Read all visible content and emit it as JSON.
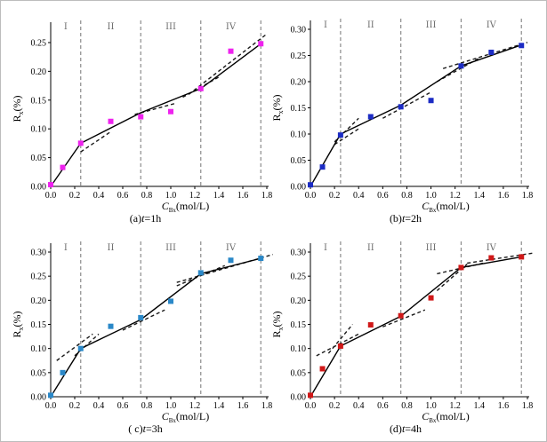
{
  "chart_data": [
    {
      "type": "scatter",
      "caption": "(a) t=1h",
      "caption_prefix": "(a)",
      "caption_var": "t",
      "caption_rest": "=1h",
      "xlabel": "C_Bx(mol/L)",
      "ylabel": "R_x(%)",
      "xlim": [
        0,
        1.8
      ],
      "ylim": [
        0,
        0.27
      ],
      "xticks": [
        "0.0",
        "0.2",
        "0.4",
        "0.6",
        "0.8",
        "1.0",
        "1.2",
        "1.4",
        "1.6",
        "1.8"
      ],
      "yticks": [
        "0.00",
        "0.05",
        "0.10",
        "0.15",
        "0.20",
        "0.25"
      ],
      "ytick_values": [
        0,
        0.05,
        0.1,
        0.15,
        0.2,
        0.25
      ],
      "region_labels": [
        "I",
        "II",
        "III",
        "IV"
      ],
      "region_boundaries": [
        0.25,
        0.75,
        1.25,
        1.75
      ],
      "marker_color": "#ee22ee",
      "points": [
        [
          0,
          0.003
        ],
        [
          0.1,
          0.033
        ],
        [
          0.25,
          0.075
        ],
        [
          0.5,
          0.113
        ],
        [
          0.75,
          0.121
        ],
        [
          1.0,
          0.13
        ],
        [
          1.25,
          0.17
        ],
        [
          1.5,
          0.235
        ],
        [
          1.75,
          0.248
        ]
      ],
      "solid_line": [
        [
          0,
          0
        ],
        [
          0.25,
          0.075
        ],
        [
          0.75,
          0.128
        ],
        [
          1.25,
          0.17
        ],
        [
          1.75,
          0.248
        ]
      ],
      "dashed_lines": [
        [
          [
            0.25,
            0.06
          ],
          [
            0.5,
            0.095
          ]
        ],
        [
          [
            0.7,
            0.125
          ],
          [
            1.05,
            0.145
          ]
        ],
        [
          [
            1.1,
            0.155
          ],
          [
            1.4,
            0.19
          ]
        ],
        [
          [
            1.15,
            0.16
          ],
          [
            1.8,
            0.265
          ]
        ]
      ]
    },
    {
      "type": "scatter",
      "caption": "(b) t=2h",
      "caption_prefix": "(b)",
      "caption_var": "t",
      "caption_rest": "=2h",
      "xlabel": "C_Bx(mol/L)",
      "ylabel": "R_x(%)",
      "xlim": [
        0,
        1.8
      ],
      "ylim": [
        0,
        0.3
      ],
      "xticks": [
        "0.0",
        "0.2",
        "0.4",
        "0.6",
        "0.8",
        "1.0",
        "1.2",
        "1.4",
        "1.6",
        "1.8"
      ],
      "yticks": [
        "0.00",
        "0.05",
        "0.10",
        "0.15",
        "0.20",
        "0.25",
        "0.30"
      ],
      "ytick_values": [
        0,
        0.05,
        0.1,
        0.15,
        0.2,
        0.25,
        0.3
      ],
      "region_labels": [
        "I",
        "II",
        "III",
        "IV"
      ],
      "region_boundaries": [
        0.25,
        0.75,
        1.25,
        1.75
      ],
      "marker_color": "#1c2cc4",
      "points": [
        [
          0,
          0.003
        ],
        [
          0.1,
          0.037
        ],
        [
          0.25,
          0.098
        ],
        [
          0.5,
          0.133
        ],
        [
          0.75,
          0.152
        ],
        [
          1.0,
          0.164
        ],
        [
          1.25,
          0.23
        ],
        [
          1.5,
          0.256
        ],
        [
          1.75,
          0.269
        ]
      ],
      "solid_line": [
        [
          0,
          0
        ],
        [
          0.25,
          0.1
        ],
        [
          0.75,
          0.155
        ],
        [
          1.25,
          0.23
        ],
        [
          1.75,
          0.27
        ]
      ],
      "dashed_lines": [
        [
          [
            0.2,
            0.085
          ],
          [
            0.4,
            0.13
          ]
        ],
        [
          [
            0.2,
            0.08
          ],
          [
            0.4,
            0.11
          ]
        ],
        [
          [
            0.6,
            0.13
          ],
          [
            1.0,
            0.18
          ]
        ],
        [
          [
            1.05,
            0.2
          ],
          [
            1.4,
            0.245
          ]
        ],
        [
          [
            1.1,
            0.225
          ],
          [
            1.8,
            0.275
          ]
        ]
      ]
    },
    {
      "type": "scatter",
      "caption": "( c) t=3h",
      "caption_prefix": "( c)",
      "caption_var": "t",
      "caption_rest": "=3h",
      "xlabel": "C_Bx(mol/L)",
      "ylabel": "R_x(%)",
      "xlim": [
        0,
        1.8
      ],
      "ylim": [
        0,
        0.3
      ],
      "xticks": [
        "0.0",
        "0.2",
        "0.4",
        "0.6",
        "0.8",
        "1.0",
        "1.2",
        "1.4",
        "1.6",
        "1.8"
      ],
      "yticks": [
        "0.00",
        "0.05",
        "0.10",
        "0.15",
        "0.20",
        "0.25",
        "0.30"
      ],
      "ytick_values": [
        0,
        0.05,
        0.1,
        0.15,
        0.2,
        0.25,
        0.3
      ],
      "region_labels": [
        "I",
        "II",
        "III",
        "IV"
      ],
      "region_boundaries": [
        0.25,
        0.75,
        1.25,
        1.75
      ],
      "marker_color": "#2a88c8",
      "points": [
        [
          0,
          0.003
        ],
        [
          0.1,
          0.05
        ],
        [
          0.25,
          0.1
        ],
        [
          0.5,
          0.146
        ],
        [
          0.75,
          0.164
        ],
        [
          1.0,
          0.198
        ],
        [
          1.25,
          0.257
        ],
        [
          1.5,
          0.283
        ],
        [
          1.75,
          0.287
        ]
      ],
      "solid_line": [
        [
          0,
          0
        ],
        [
          0.25,
          0.1
        ],
        [
          0.75,
          0.16
        ],
        [
          1.25,
          0.255
        ],
        [
          1.75,
          0.287
        ]
      ],
      "dashed_lines": [
        [
          [
            0.05,
            0.075
          ],
          [
            0.35,
            0.13
          ]
        ],
        [
          [
            0.2,
            0.085
          ],
          [
            0.4,
            0.13
          ]
        ],
        [
          [
            0.6,
            0.138
          ],
          [
            0.95,
            0.18
          ]
        ],
        [
          [
            1.05,
            0.23
          ],
          [
            1.45,
            0.272
          ]
        ],
        [
          [
            1.05,
            0.237
          ],
          [
            1.85,
            0.295
          ]
        ]
      ]
    },
    {
      "type": "scatter",
      "caption": "(d) t=4h",
      "caption_prefix": "(d)",
      "caption_var": "t",
      "caption_rest": "=4h",
      "xlabel": "C_Bx(mol/L)",
      "ylabel": "R_x(%)",
      "xlim": [
        0,
        1.8
      ],
      "ylim": [
        0,
        0.3
      ],
      "xticks": [
        "0.0",
        "0.2",
        "0.4",
        "0.6",
        "0.8",
        "1.0",
        "1.2",
        "1.4",
        "1.6",
        "1.8"
      ],
      "yticks": [
        "0.00",
        "0.05",
        "0.10",
        "0.15",
        "0.20",
        "0.25",
        "0.30"
      ],
      "ytick_values": [
        0,
        0.05,
        0.1,
        0.15,
        0.2,
        0.25,
        0.3
      ],
      "region_labels": [
        "I",
        "II",
        "III",
        "IV"
      ],
      "region_boundaries": [
        0.25,
        0.75,
        1.25,
        1.75
      ],
      "marker_color": "#d01818",
      "points": [
        [
          0,
          0.003
        ],
        [
          0.1,
          0.058
        ],
        [
          0.25,
          0.105
        ],
        [
          0.5,
          0.149
        ],
        [
          0.75,
          0.168
        ],
        [
          1.0,
          0.205
        ],
        [
          1.25,
          0.268
        ],
        [
          1.5,
          0.288
        ],
        [
          1.75,
          0.29
        ]
      ],
      "solid_line": [
        [
          0,
          0
        ],
        [
          0.25,
          0.105
        ],
        [
          0.75,
          0.167
        ],
        [
          1.25,
          0.268
        ],
        [
          1.75,
          0.29
        ]
      ],
      "dashed_lines": [
        [
          [
            0.05,
            0.085
          ],
          [
            0.4,
            0.13
          ]
        ],
        [
          [
            0.15,
            0.09
          ],
          [
            0.35,
            0.15
          ]
        ],
        [
          [
            0.6,
            0.145
          ],
          [
            0.95,
            0.18
          ]
        ],
        [
          [
            1.05,
            0.255
          ],
          [
            1.45,
            0.278
          ]
        ],
        [
          [
            1.05,
            0.22
          ],
          [
            1.3,
            0.275
          ]
        ],
        [
          [
            1.3,
            0.277
          ],
          [
            1.85,
            0.298
          ]
        ]
      ]
    }
  ]
}
